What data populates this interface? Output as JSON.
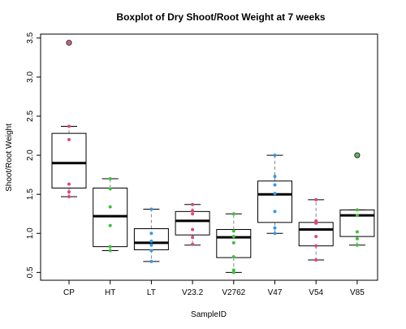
{
  "chart_data": {
    "type": "boxplot",
    "title": "Boxplot of Dry Shoot/Root Weight at 7 weeks",
    "xlabel": "SampleID",
    "ylabel": "Shoot/Root Weight",
    "ylim": [
      0.4,
      3.55
    ],
    "yticks": [
      "0.5",
      "1.0",
      "1.5",
      "2.0",
      "2.5",
      "3.0",
      "3.5"
    ],
    "grid": false,
    "categories": [
      "CP",
      "HT",
      "LT",
      "V23.2",
      "V2762",
      "V47",
      "V54",
      "V85"
    ],
    "boxes": [
      {
        "min": 1.47,
        "q1": 1.58,
        "median": 1.9,
        "q3": 2.28,
        "max": 2.37,
        "outliers": [
          3.44
        ]
      },
      {
        "min": 0.78,
        "q1": 0.83,
        "median": 1.22,
        "q3": 1.58,
        "max": 1.7,
        "outliers": []
      },
      {
        "min": 0.64,
        "q1": 0.79,
        "median": 0.88,
        "q3": 1.06,
        "max": 1.31,
        "outliers": []
      },
      {
        "min": 0.85,
        "q1": 0.98,
        "median": 1.16,
        "q3": 1.28,
        "max": 1.37,
        "outliers": []
      },
      {
        "min": 0.5,
        "q1": 0.69,
        "median": 0.95,
        "q3": 1.05,
        "max": 1.25,
        "outliers": []
      },
      {
        "min": 1.0,
        "q1": 1.14,
        "median": 1.5,
        "q3": 1.67,
        "max": 2.0,
        "outliers": []
      },
      {
        "min": 0.66,
        "q1": 0.84,
        "median": 1.05,
        "q3": 1.14,
        "max": 1.43,
        "outliers": []
      },
      {
        "min": 0.85,
        "q1": 0.96,
        "median": 1.23,
        "q3": 1.3,
        "max": 1.3,
        "outliers": [
          2.0
        ]
      }
    ],
    "points": [
      {
        "group": 0,
        "values": [
          3.44,
          2.37,
          2.2,
          1.63,
          1.53,
          1.47
        ],
        "color": "#e0457b"
      },
      {
        "group": 1,
        "values": [
          1.7,
          1.57,
          1.34,
          1.1,
          0.83,
          0.78
        ],
        "color": "#3fbf3f"
      },
      {
        "group": 2,
        "values": [
          1.31,
          1.0,
          0.9,
          0.85,
          0.78,
          0.64
        ],
        "color": "#3399e6"
      },
      {
        "group": 3,
        "values": [
          1.37,
          1.29,
          1.25,
          1.05,
          0.95,
          0.86
        ],
        "color": "#e0457b"
      },
      {
        "group": 4,
        "values": [
          1.25,
          1.03,
          0.96,
          0.88,
          0.7,
          0.53,
          0.5
        ],
        "color": "#3fbf3f"
      },
      {
        "group": 5,
        "values": [
          2.0,
          1.73,
          1.62,
          1.51,
          1.28,
          1.07,
          1.0
        ],
        "color": "#3399e6"
      },
      {
        "group": 6,
        "values": [
          1.43,
          1.16,
          1.13,
          0.96,
          0.84,
          0.66
        ],
        "color": "#e0457b"
      },
      {
        "group": 7,
        "values": [
          2.0,
          1.3,
          1.23,
          1.02,
          0.93,
          0.85
        ],
        "color": "#3fbf3f"
      }
    ],
    "colors": {
      "box": "#000000",
      "whisker": "#888888",
      "median": "#000000",
      "outlier": "#000000"
    }
  }
}
